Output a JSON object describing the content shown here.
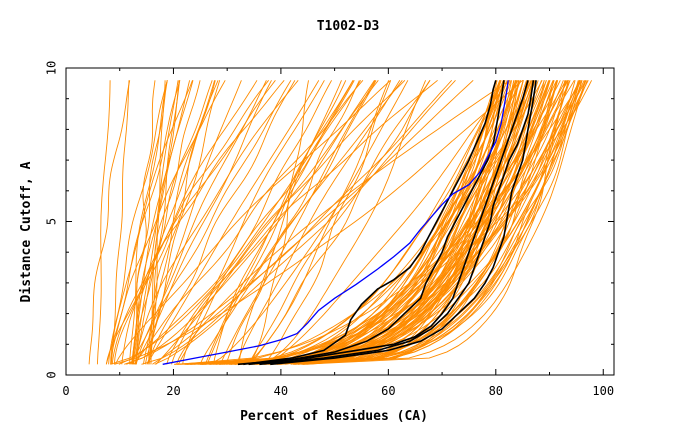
{
  "chart_data": {
    "type": "line",
    "title": "T1002-D3",
    "xlabel": "Percent of Residues (CA)",
    "ylabel": "Distance Cutoff, A",
    "xlim": [
      0,
      102
    ],
    "ylim": [
      0,
      10
    ],
    "x_ticks": [
      0,
      20,
      40,
      60,
      80,
      100
    ],
    "y_ticks": [
      0,
      5,
      10
    ],
    "x_tick_labels": [
      "0",
      "20",
      "40",
      "60",
      "80",
      "100"
    ],
    "y_tick_labels": [
      "0",
      "5",
      "10"
    ],
    "colors": {
      "background_models": "#ff8c00",
      "highlight_black": "#000000",
      "highlight_blue": "#0000ff"
    },
    "background_model_count": 160,
    "series": [
      {
        "name": "highlight-blue",
        "color": "#0000ff",
        "points": [
          [
            18,
            0.35
          ],
          [
            24,
            0.55
          ],
          [
            30,
            0.75
          ],
          [
            36,
            0.95
          ],
          [
            40,
            1.15
          ],
          [
            43,
            1.35
          ],
          [
            45,
            1.7
          ],
          [
            47,
            2.1
          ],
          [
            50,
            2.5
          ],
          [
            54,
            2.95
          ],
          [
            58,
            3.45
          ],
          [
            61,
            3.85
          ],
          [
            64,
            4.3
          ],
          [
            66,
            4.75
          ],
          [
            68,
            5.15
          ],
          [
            70,
            5.55
          ],
          [
            72,
            5.9
          ],
          [
            75,
            6.2
          ],
          [
            77,
            6.6
          ],
          [
            78.5,
            7.1
          ],
          [
            80,
            7.6
          ],
          [
            81,
            8.2
          ],
          [
            81.5,
            8.7
          ],
          [
            82,
            9.2
          ],
          [
            82.3,
            9.6
          ]
        ]
      },
      {
        "name": "highlight-black-1",
        "color": "#000000",
        "points": [
          [
            33,
            0.35
          ],
          [
            42,
            0.55
          ],
          [
            48,
            0.8
          ],
          [
            52,
            1.3
          ],
          [
            53,
            1.8
          ],
          [
            55,
            2.3
          ],
          [
            58,
            2.8
          ],
          [
            61,
            3.1
          ],
          [
            64,
            3.5
          ],
          [
            66,
            4.0
          ],
          [
            67.5,
            4.5
          ],
          [
            69,
            5.0
          ],
          [
            70.5,
            5.5
          ],
          [
            72,
            6.0
          ],
          [
            73.5,
            6.5
          ],
          [
            75,
            7.0
          ],
          [
            76.5,
            7.6
          ],
          [
            78,
            8.2
          ],
          [
            79,
            8.8
          ],
          [
            79.5,
            9.3
          ],
          [
            80,
            9.6
          ]
        ]
      },
      {
        "name": "highlight-black-2",
        "color": "#000000",
        "points": [
          [
            32,
            0.35
          ],
          [
            42,
            0.5
          ],
          [
            50,
            0.75
          ],
          [
            56,
            1.1
          ],
          [
            60,
            1.5
          ],
          [
            63,
            2.0
          ],
          [
            66,
            2.5
          ],
          [
            67,
            3.0
          ],
          [
            68.5,
            3.5
          ],
          [
            70,
            4.0
          ],
          [
            71,
            4.5
          ],
          [
            72.5,
            5.0
          ],
          [
            74,
            5.5
          ],
          [
            75.5,
            6.0
          ],
          [
            77,
            6.5
          ],
          [
            78.5,
            7.0
          ],
          [
            79.5,
            7.5
          ],
          [
            80,
            8.0
          ],
          [
            80.5,
            8.5
          ],
          [
            81,
            9.0
          ],
          [
            81.5,
            9.6
          ]
        ]
      },
      {
        "name": "highlight-black-3",
        "color": "#000000",
        "points": [
          [
            34,
            0.35
          ],
          [
            45,
            0.55
          ],
          [
            54,
            0.8
          ],
          [
            61,
            1.0
          ],
          [
            65,
            1.25
          ],
          [
            68,
            1.6
          ],
          [
            70,
            2.0
          ],
          [
            72,
            2.5
          ],
          [
            73,
            3.0
          ],
          [
            74,
            3.5
          ],
          [
            75,
            4.0
          ],
          [
            76,
            4.5
          ],
          [
            77,
            5.0
          ],
          [
            78,
            5.5
          ],
          [
            79,
            6.0
          ],
          [
            80,
            6.5
          ],
          [
            81,
            7.0
          ],
          [
            82,
            7.5
          ],
          [
            83,
            8.0
          ],
          [
            84,
            8.5
          ],
          [
            85,
            9.0
          ],
          [
            86,
            9.6
          ]
        ]
      },
      {
        "name": "highlight-black-4",
        "color": "#000000",
        "points": [
          [
            36,
            0.35
          ],
          [
            48,
            0.55
          ],
          [
            58,
            0.8
          ],
          [
            64,
            1.1
          ],
          [
            68,
            1.5
          ],
          [
            71,
            2.0
          ],
          [
            73,
            2.5
          ],
          [
            75,
            3.0
          ],
          [
            76,
            3.5
          ],
          [
            77,
            4.0
          ],
          [
            78,
            4.5
          ],
          [
            79,
            5.0
          ],
          [
            79.5,
            5.5
          ],
          [
            80.5,
            6.0
          ],
          [
            81.5,
            6.5
          ],
          [
            82.5,
            7.0
          ],
          [
            84,
            7.5
          ],
          [
            85,
            8.0
          ],
          [
            86,
            8.5
          ],
          [
            86.5,
            9.0
          ],
          [
            87,
            9.6
          ]
        ]
      },
      {
        "name": "highlight-black-5",
        "color": "#000000",
        "points": [
          [
            38,
            0.35
          ],
          [
            50,
            0.55
          ],
          [
            60,
            0.8
          ],
          [
            66,
            1.1
          ],
          [
            70,
            1.5
          ],
          [
            73,
            2.0
          ],
          [
            76,
            2.5
          ],
          [
            78,
            3.0
          ],
          [
            79.5,
            3.5
          ],
          [
            80.5,
            4.0
          ],
          [
            81.5,
            4.5
          ],
          [
            82,
            5.0
          ],
          [
            82.5,
            5.5
          ],
          [
            83,
            6.0
          ],
          [
            84,
            6.5
          ],
          [
            85,
            7.0
          ],
          [
            85.5,
            7.5
          ],
          [
            86,
            8.0
          ],
          [
            86.5,
            8.5
          ],
          [
            87,
            9.0
          ],
          [
            87.5,
            9.6
          ]
        ]
      }
    ]
  }
}
